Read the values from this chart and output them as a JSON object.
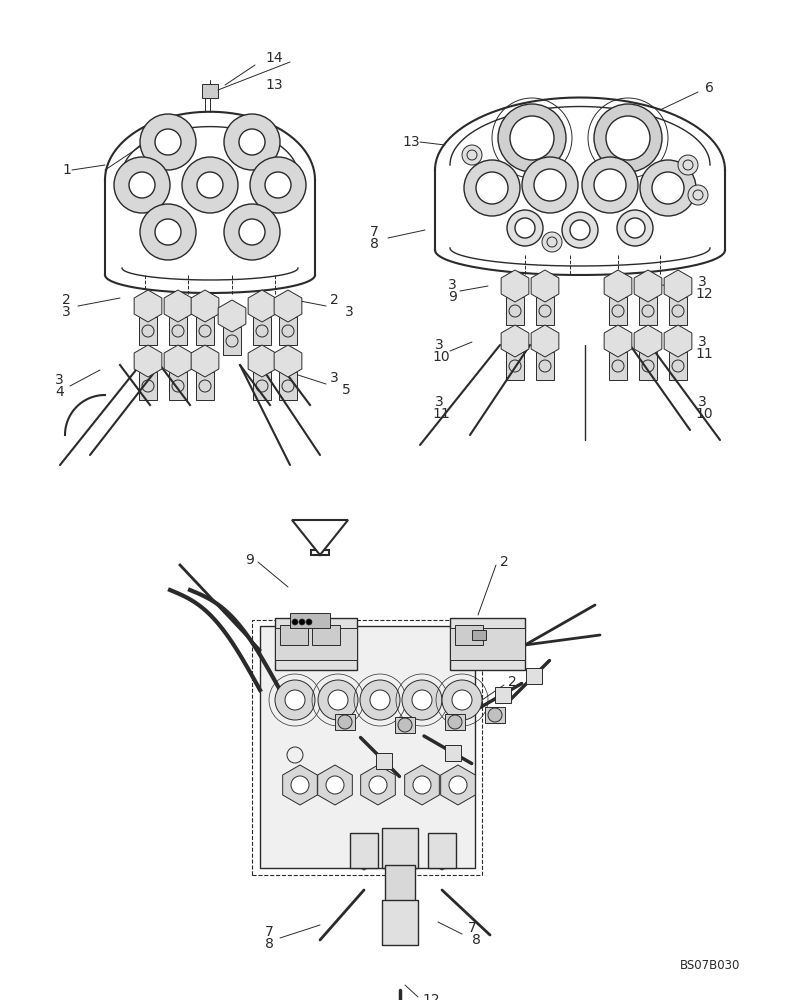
{
  "bg_color": "#ffffff",
  "line_color": "#2a2a2a",
  "ref_code": "BS07B030",
  "fig_width": 7.88,
  "fig_height": 10.0,
  "dpi": 100
}
